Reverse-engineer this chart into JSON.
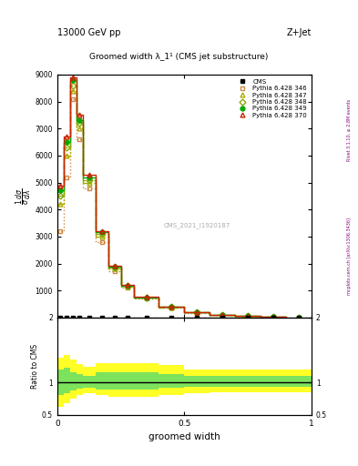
{
  "title_top": "13000 GeV pp",
  "title_right": "Z+Jet",
  "plot_title": "Groomed width λ_1¹ (CMS jet substructure)",
  "watermark": "CMS_2021_I1920187",
  "right_label_top": "Rivet 3.1.10, ≥ 2.8M events",
  "right_label_bottom": "mcplots.cern.ch [arXiv:1306.3436]",
  "xlabel": "groomed width",
  "ylabel_ratio": "Ratio to CMS",
  "xlim": [
    0,
    1
  ],
  "ylim_main": [
    0,
    9000
  ],
  "ylim_ratio": [
    0.5,
    2.0
  ],
  "ratio_line": 1.0,
  "bin_edges": [
    0.0,
    0.025,
    0.05,
    0.075,
    0.1,
    0.15,
    0.2,
    0.25,
    0.3,
    0.4,
    0.5,
    0.6,
    0.7,
    0.8,
    0.9,
    1.0
  ],
  "cms_values": [
    0,
    0,
    0,
    0,
    0,
    0,
    0,
    0,
    0,
    0,
    0,
    0,
    0,
    0,
    0
  ],
  "series": [
    {
      "label": "Pythia 6.428 346",
      "color": "#cc8844",
      "linestyle": "dotted",
      "marker": "s",
      "markerfacecolor": "none",
      "values": [
        3200,
        5200,
        8100,
        6600,
        4800,
        2800,
        1700,
        1100,
        700,
        370,
        180,
        90,
        45,
        22,
        10
      ]
    },
    {
      "label": "Pythia 6.428 347",
      "color": "#aaaa00",
      "linestyle": "dashdot",
      "marker": "^",
      "markerfacecolor": "none",
      "values": [
        4200,
        6000,
        8400,
        7000,
        5000,
        3000,
        1800,
        1150,
        730,
        380,
        185,
        92,
        46,
        23,
        11
      ]
    },
    {
      "label": "Pythia 6.428 348",
      "color": "#88aa00",
      "linestyle": "dashed",
      "marker": "D",
      "markerfacecolor": "none",
      "values": [
        4500,
        6300,
        8600,
        7200,
        5100,
        3100,
        1850,
        1170,
        740,
        385,
        188,
        93,
        47,
        23,
        11
      ]
    },
    {
      "label": "Pythia 6.428 349",
      "color": "#00aa00",
      "linestyle": "solid",
      "marker": "o",
      "markerfacecolor": "#00aa00",
      "values": [
        4700,
        6500,
        8800,
        7300,
        5200,
        3150,
        1880,
        1190,
        750,
        390,
        190,
        95,
        47,
        24,
        11
      ]
    },
    {
      "label": "Pythia 6.428 370",
      "color": "#cc2200",
      "linestyle": "solid",
      "marker": "^",
      "markerfacecolor": "none",
      "values": [
        4900,
        6700,
        8900,
        7500,
        5300,
        3200,
        1920,
        1210,
        760,
        395,
        192,
        96,
        48,
        24,
        12
      ]
    }
  ],
  "yticks_main": [
    1000,
    2000,
    3000,
    4000,
    5000,
    6000,
    7000,
    8000,
    9000
  ],
  "ytick_labels_main": [
    "1000",
    "2000",
    "3000",
    "4000",
    "5000",
    "6000",
    "7000",
    "8000",
    "9000"
  ],
  "ratio_yellow_band": {
    "x_edges": [
      0.0,
      0.025,
      0.05,
      0.075,
      0.1,
      0.15,
      0.2,
      0.25,
      0.3,
      0.4,
      0.5,
      0.6,
      0.7,
      0.8,
      0.9,
      1.0
    ],
    "lower": [
      0.62,
      0.68,
      0.75,
      0.8,
      0.83,
      0.8,
      0.78,
      0.78,
      0.78,
      0.8,
      0.83,
      0.85,
      0.85,
      0.85,
      0.85
    ],
    "upper": [
      1.38,
      1.42,
      1.35,
      1.28,
      1.24,
      1.3,
      1.3,
      1.3,
      1.3,
      1.27,
      1.2,
      1.2,
      1.2,
      1.2,
      1.2
    ]
  },
  "ratio_green_band": {
    "x_edges": [
      0.0,
      0.025,
      0.05,
      0.075,
      0.1,
      0.15,
      0.2,
      0.25,
      0.3,
      0.4,
      0.5,
      0.6,
      0.7,
      0.8,
      0.9,
      1.0
    ],
    "lower": [
      0.8,
      0.83,
      0.87,
      0.9,
      0.92,
      0.89,
      0.89,
      0.89,
      0.89,
      0.91,
      0.93,
      0.93,
      0.93,
      0.93,
      0.93
    ],
    "upper": [
      1.2,
      1.22,
      1.16,
      1.13,
      1.1,
      1.16,
      1.16,
      1.16,
      1.16,
      1.13,
      1.1,
      1.1,
      1.1,
      1.1,
      1.1
    ]
  }
}
